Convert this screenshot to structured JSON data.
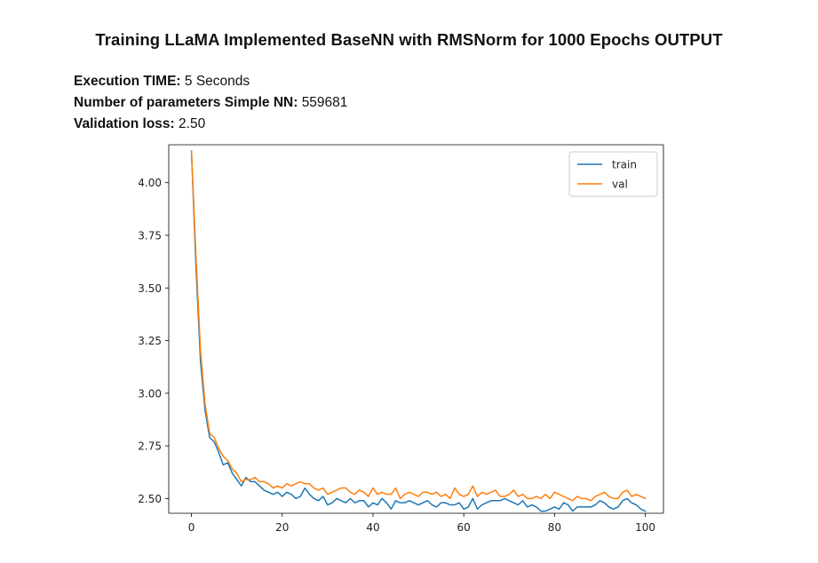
{
  "header": {
    "title": "Training LLaMA Implemented BaseNN with RMSNorm for 1000 Epochs OUTPUT"
  },
  "stats": {
    "execution_time_label": "Execution TIME:",
    "execution_time_value": "5 Seconds",
    "params_label": "Number of parameters Simple NN:",
    "params_value": "559681",
    "val_loss_label": "Validation loss:",
    "val_loss_value": "2.50"
  },
  "colors": {
    "train": "#1f77b4",
    "val": "#ff7f0e",
    "axis": "#000000"
  },
  "chart_data": {
    "type": "line",
    "title": "",
    "xlabel": "",
    "ylabel": "",
    "xlim": [
      -5,
      104
    ],
    "ylim": [
      2.43,
      4.18
    ],
    "x_ticks": [
      0,
      20,
      40,
      60,
      80,
      100
    ],
    "x_tick_labels": [
      "0",
      "20",
      "40",
      "60",
      "80",
      "100"
    ],
    "y_ticks": [
      2.5,
      2.75,
      3.0,
      3.25,
      3.5,
      3.75,
      4.0
    ],
    "y_tick_labels": [
      "2.50",
      "2.75",
      "3.00",
      "3.25",
      "3.50",
      "3.75",
      "4.00"
    ],
    "legend_position": "top-right",
    "series": [
      {
        "name": "train",
        "color": "#1f77b4",
        "values": [
          4.15,
          3.6,
          3.15,
          2.92,
          2.79,
          2.77,
          2.72,
          2.66,
          2.67,
          2.62,
          2.59,
          2.56,
          2.6,
          2.58,
          2.58,
          2.56,
          2.54,
          2.53,
          2.52,
          2.53,
          2.51,
          2.53,
          2.52,
          2.5,
          2.51,
          2.55,
          2.52,
          2.5,
          2.49,
          2.51,
          2.47,
          2.48,
          2.5,
          2.49,
          2.48,
          2.5,
          2.48,
          2.49,
          2.49,
          2.46,
          2.48,
          2.47,
          2.5,
          2.48,
          2.45,
          2.49,
          2.48,
          2.48,
          2.49,
          2.48,
          2.47,
          2.48,
          2.49,
          2.47,
          2.46,
          2.48,
          2.48,
          2.47,
          2.47,
          2.48,
          2.45,
          2.46,
          2.5,
          2.45,
          2.47,
          2.48,
          2.49,
          2.49,
          2.49,
          2.5,
          2.49,
          2.48,
          2.47,
          2.49,
          2.46,
          2.47,
          2.46,
          2.44,
          2.44,
          2.45,
          2.46,
          2.45,
          2.48,
          2.47,
          2.44,
          2.46,
          2.46,
          2.46,
          2.46,
          2.47,
          2.49,
          2.48,
          2.46,
          2.45,
          2.46,
          2.49,
          2.5,
          2.48,
          2.47,
          2.45,
          2.44
        ]
      },
      {
        "name": "val",
        "color": "#ff7f0e",
        "values": [
          4.15,
          3.65,
          3.2,
          2.95,
          2.81,
          2.79,
          2.74,
          2.7,
          2.68,
          2.64,
          2.62,
          2.58,
          2.59,
          2.59,
          2.6,
          2.58,
          2.58,
          2.57,
          2.55,
          2.56,
          2.55,
          2.57,
          2.56,
          2.57,
          2.58,
          2.57,
          2.57,
          2.55,
          2.54,
          2.55,
          2.52,
          2.53,
          2.54,
          2.55,
          2.55,
          2.53,
          2.52,
          2.54,
          2.53,
          2.51,
          2.55,
          2.52,
          2.53,
          2.52,
          2.52,
          2.55,
          2.5,
          2.52,
          2.53,
          2.52,
          2.51,
          2.53,
          2.53,
          2.52,
          2.53,
          2.51,
          2.52,
          2.5,
          2.55,
          2.52,
          2.51,
          2.52,
          2.56,
          2.51,
          2.53,
          2.52,
          2.53,
          2.54,
          2.51,
          2.51,
          2.52,
          2.54,
          2.51,
          2.52,
          2.5,
          2.5,
          2.51,
          2.5,
          2.52,
          2.5,
          2.53,
          2.52,
          2.51,
          2.5,
          2.49,
          2.51,
          2.5,
          2.5,
          2.49,
          2.51,
          2.52,
          2.53,
          2.51,
          2.5,
          2.5,
          2.53,
          2.54,
          2.51,
          2.52,
          2.51,
          2.5
        ]
      }
    ]
  }
}
